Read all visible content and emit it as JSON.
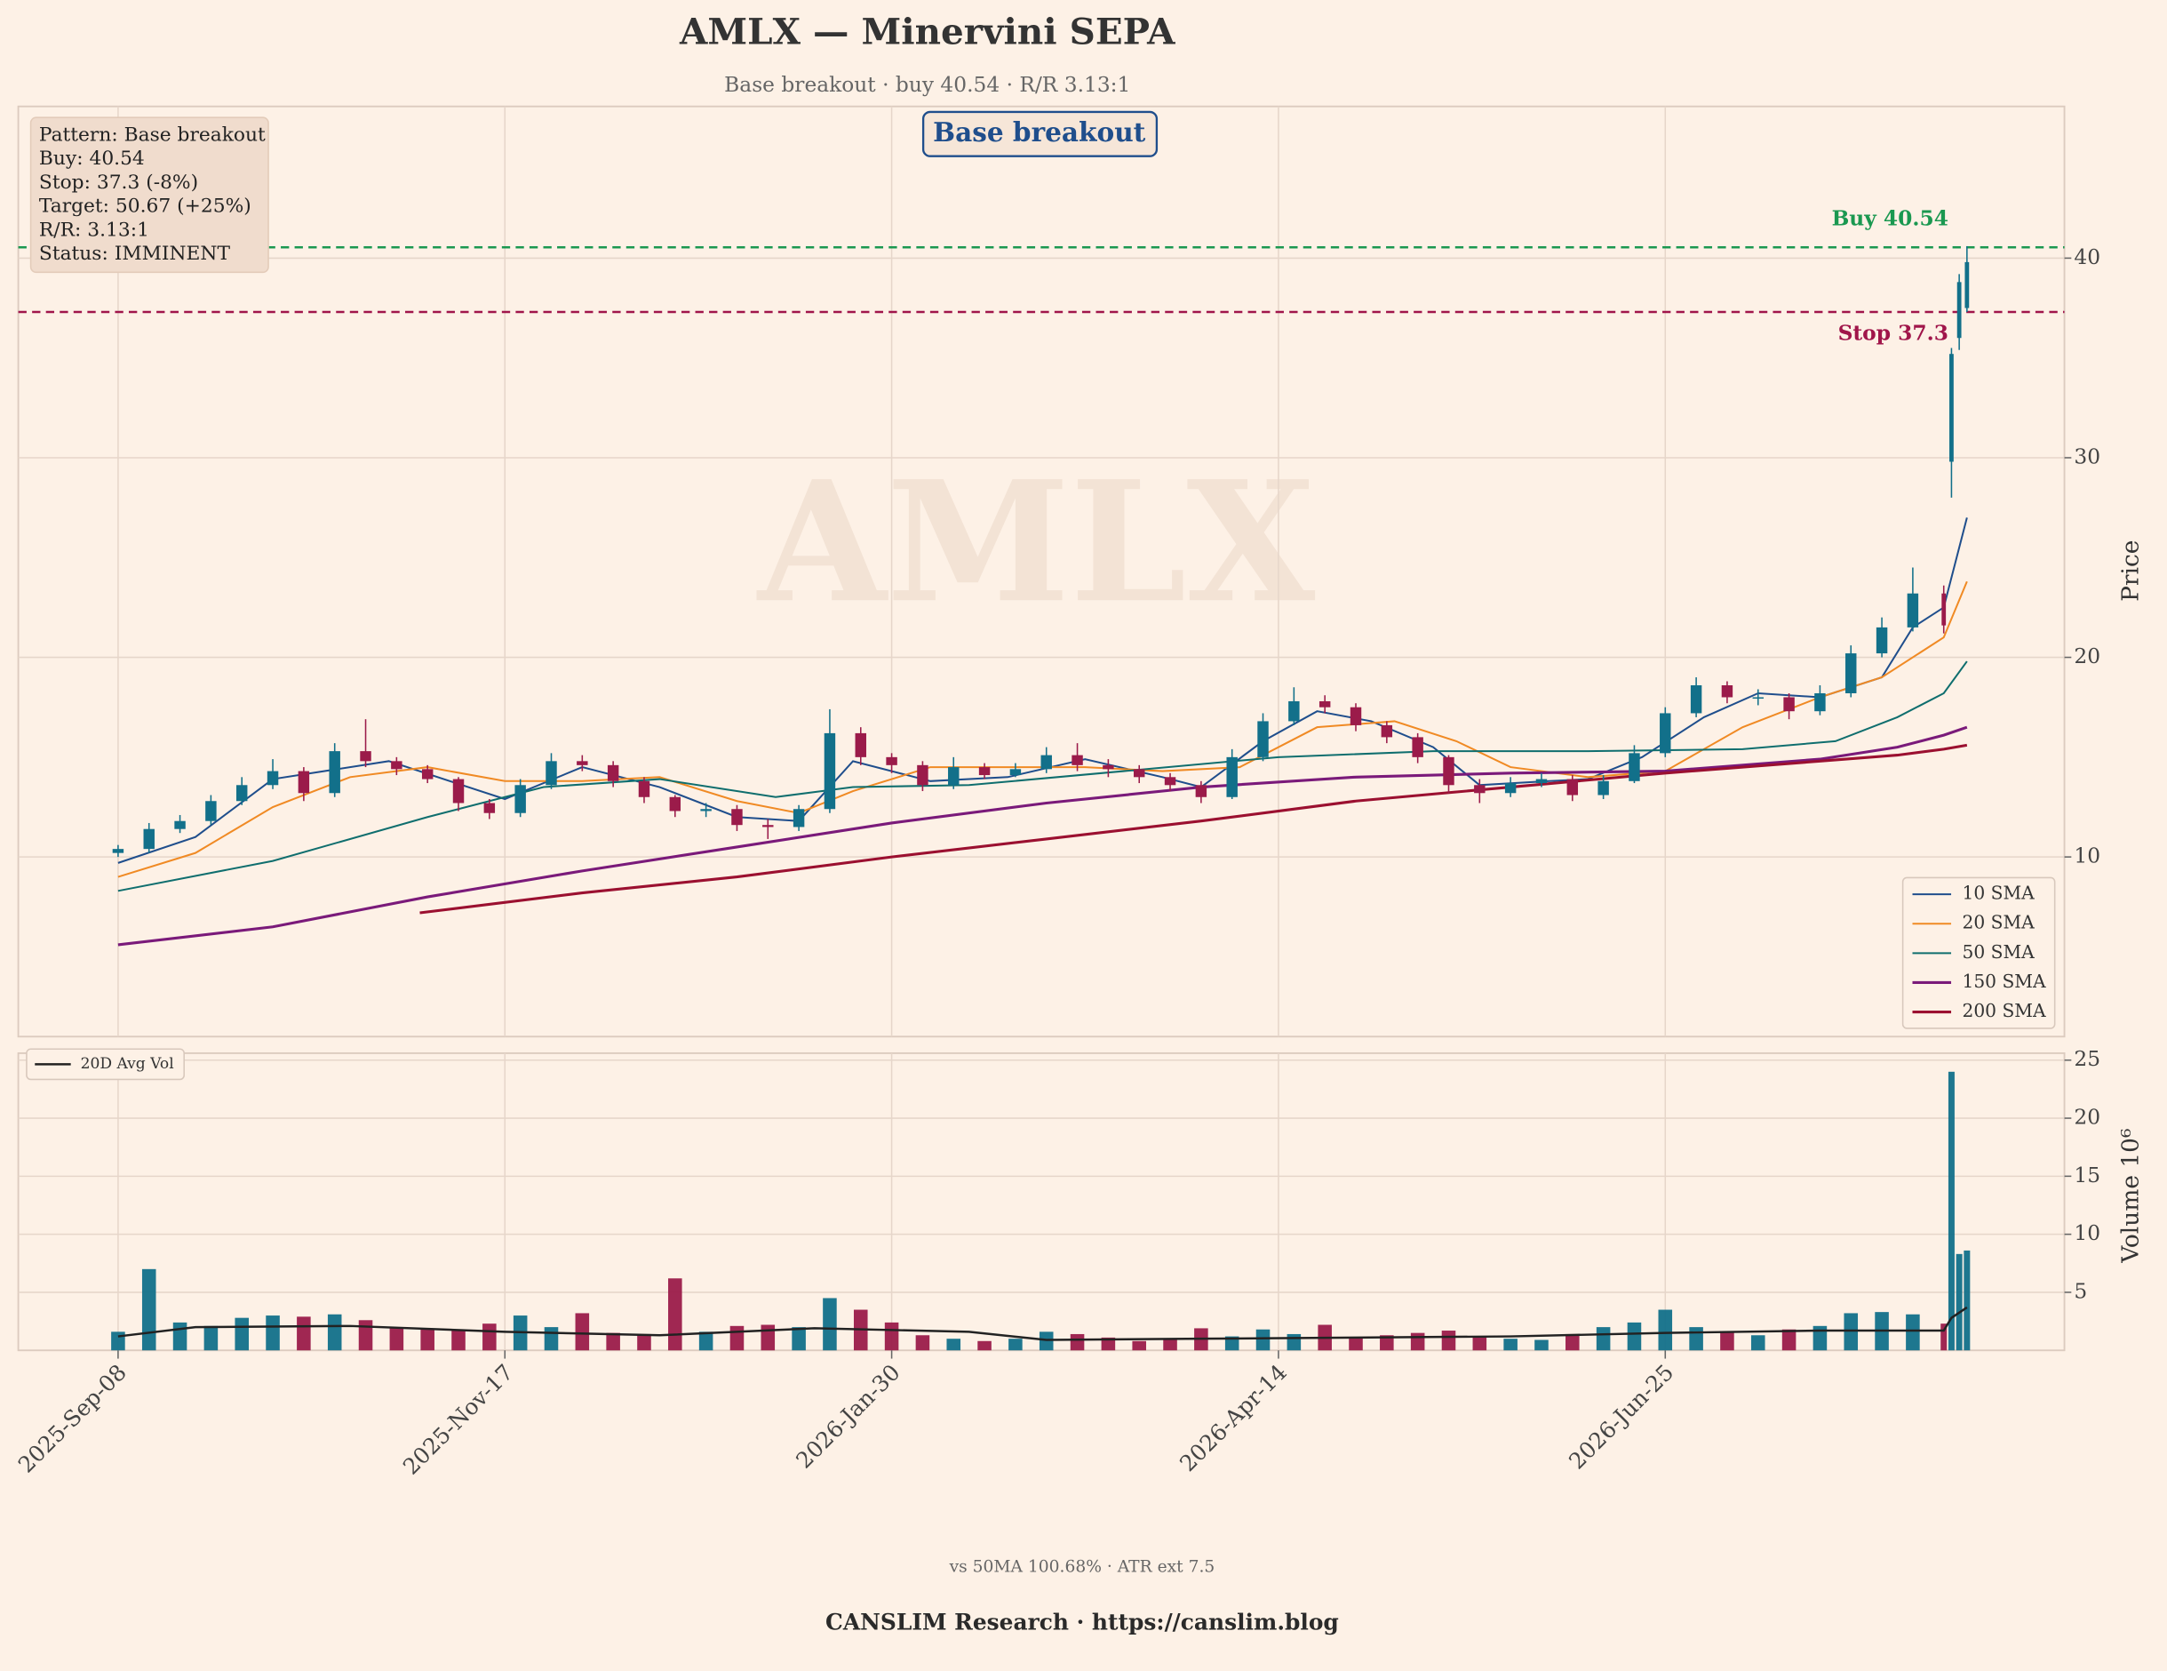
{
  "chart_data": {
    "type": "candlestick",
    "title": "AMLX — Minervini SEPA",
    "subtitle": "Base breakout · buy 40.54 · R/R 3.13:1",
    "pattern_label": "Base breakout",
    "watermark": "AMLX",
    "info_box": [
      "Pattern: Base breakout",
      "Buy: 40.54",
      "Stop: 37.3 (-8%)",
      "Target: 50.67 (+25%)",
      "R/R: 3.13:1",
      "Status: IMMINENT"
    ],
    "ylabel": "Price",
    "y2label": "Volume  10⁶",
    "footer_note": "vs 50MA 100.68% · ATR ext 7.5",
    "credit": "CANSLIM Research  ·  https://canslim.blog",
    "up_color": "#12708a",
    "down_color": "#9b1b4a",
    "xlim": [
      -12.9,
      251.6
    ],
    "xticks": [
      {
        "value": 0,
        "label": "2025-Sep-08"
      },
      {
        "value": 50,
        "label": "2025-Nov-17"
      },
      {
        "value": 100,
        "label": "2026-Jan-30"
      },
      {
        "value": 150,
        "label": "2026-Apr-14"
      },
      {
        "value": 200,
        "label": "2026-Jun-25"
      }
    ],
    "ylim": [
      1.0,
      47.6
    ],
    "yticks": [
      10,
      20,
      30,
      40
    ],
    "y2lim": [
      0,
      25.6
    ],
    "y2ticks": [
      5,
      10,
      15,
      20,
      25
    ],
    "grid": true,
    "candles": {
      "x": [
        0,
        4,
        8,
        12,
        16,
        20,
        24,
        28,
        32,
        36,
        40,
        44,
        48,
        52,
        56,
        60,
        64,
        68,
        72,
        76,
        80,
        84,
        88,
        92,
        96,
        100,
        104,
        108,
        112,
        116,
        120,
        124,
        128,
        132,
        136,
        140,
        144,
        148,
        152,
        156,
        160,
        164,
        168,
        172,
        176,
        180,
        184,
        188,
        192,
        196,
        200,
        204,
        208,
        212,
        216,
        220,
        224,
        228,
        232,
        236,
        237,
        238,
        239
      ],
      "open": [
        10.2,
        10.4,
        11.4,
        11.8,
        12.8,
        13.6,
        14.3,
        13.2,
        15.3,
        14.8,
        14.4,
        13.9,
        12.7,
        12.2,
        13.6,
        14.8,
        14.6,
        13.8,
        13.0,
        12.3,
        12.4,
        11.6,
        11.5,
        12.4,
        16.2,
        15.0,
        14.6,
        13.6,
        14.5,
        14.1,
        14.4,
        15.1,
        14.6,
        14.4,
        14.0,
        13.6,
        13.0,
        15.0,
        16.8,
        17.8,
        17.5,
        16.6,
        16.0,
        15.0,
        13.6,
        13.2,
        13.7,
        13.9,
        13.1,
        13.8,
        15.2,
        17.2,
        18.6,
        18.0,
        18.0,
        17.3,
        18.2,
        20.2,
        21.5,
        23.2,
        29.8,
        36.0,
        37.5
      ],
      "high": [
        10.6,
        11.7,
        12.1,
        13.1,
        14.0,
        14.9,
        14.5,
        15.7,
        16.9,
        15.0,
        14.6,
        14.0,
        12.9,
        13.9,
        15.2,
        15.1,
        14.8,
        14.0,
        13.1,
        12.7,
        12.6,
        11.9,
        12.6,
        17.4,
        16.5,
        15.2,
        14.8,
        15.0,
        14.7,
        14.7,
        15.5,
        15.7,
        14.9,
        14.6,
        14.2,
        13.8,
        15.4,
        17.2,
        18.5,
        18.1,
        17.7,
        16.8,
        16.2,
        15.1,
        13.9,
        14.0,
        14.2,
        14.1,
        14.1,
        15.6,
        17.5,
        19.0,
        18.8,
        18.4,
        18.2,
        18.6,
        20.6,
        22.0,
        24.5,
        23.6,
        35.5,
        39.2,
        40.6
      ],
      "low": [
        10.0,
        10.2,
        11.2,
        11.6,
        12.6,
        13.4,
        12.8,
        13.0,
        14.5,
        14.1,
        13.7,
        12.3,
        11.9,
        12.0,
        13.4,
        14.3,
        13.5,
        12.7,
        12.0,
        12.0,
        11.3,
        10.9,
        11.3,
        12.2,
        14.6,
        14.2,
        13.3,
        13.4,
        13.9,
        14.0,
        14.2,
        14.3,
        14.0,
        13.7,
        13.3,
        12.7,
        12.9,
        14.8,
        16.6,
        17.2,
        16.3,
        15.7,
        14.7,
        13.2,
        12.7,
        13.0,
        13.5,
        12.8,
        12.9,
        13.7,
        15.0,
        17.0,
        17.7,
        17.6,
        16.9,
        17.1,
        18.0,
        20.0,
        21.3,
        21.2,
        28.0,
        35.4,
        37.3
      ],
      "close": [
        10.4,
        11.4,
        11.8,
        12.8,
        13.6,
        14.3,
        13.2,
        15.3,
        14.8,
        14.4,
        13.9,
        12.7,
        12.2,
        13.6,
        14.8,
        14.6,
        13.8,
        13.0,
        12.3,
        12.4,
        11.6,
        11.5,
        12.4,
        16.2,
        15.0,
        14.6,
        13.6,
        14.5,
        14.1,
        14.4,
        15.1,
        14.6,
        14.4,
        14.0,
        13.6,
        13.0,
        15.0,
        16.8,
        17.8,
        17.5,
        16.6,
        16.0,
        15.0,
        13.6,
        13.2,
        13.7,
        13.9,
        13.1,
        13.8,
        15.2,
        17.2,
        18.6,
        18.0,
        18.0,
        17.3,
        18.2,
        20.2,
        21.5,
        23.2,
        21.6,
        35.2,
        38.8,
        39.8
      ],
      "volume": [
        1.6,
        7.0,
        2.4,
        2.1,
        2.8,
        3.0,
        2.9,
        3.1,
        2.6,
        2.0,
        1.8,
        1.7,
        2.3,
        3.0,
        2.0,
        3.2,
        1.5,
        1.4,
        6.2,
        1.6,
        2.1,
        2.2,
        2.0,
        4.5,
        3.5,
        2.4,
        1.3,
        1.0,
        0.8,
        1.0,
        1.6,
        1.4,
        1.1,
        0.8,
        1.0,
        1.9,
        1.2,
        1.8,
        1.4,
        2.2,
        1.1,
        1.3,
        1.5,
        1.7,
        1.2,
        1.0,
        0.9,
        1.4,
        2.0,
        2.4,
        3.5,
        2.0,
        1.6,
        1.3,
        1.8,
        2.1,
        3.2,
        3.3,
        3.1,
        2.3,
        24.0,
        8.3,
        8.6
      ]
    },
    "sma": [
      {
        "name": "10 SMA",
        "color": "#1f4e8c",
        "x": [
          0,
          10,
          20,
          35,
          50,
          60,
          70,
          80,
          88,
          95,
          105,
          115,
          125,
          135,
          140,
          148,
          155,
          162,
          170,
          176,
          185,
          190,
          197,
          205,
          212,
          220,
          228,
          232,
          236,
          239
        ],
        "values": [
          9.7,
          11.0,
          13.9,
          14.8,
          12.9,
          14.5,
          13.5,
          12.0,
          11.8,
          14.8,
          13.8,
          14.0,
          14.9,
          14.0,
          13.5,
          15.8,
          17.3,
          16.8,
          15.5,
          13.6,
          13.8,
          13.9,
          15.0,
          17.0,
          18.2,
          18.0,
          19.0,
          21.5,
          22.5,
          27.0
        ]
      },
      {
        "name": "20 SMA",
        "color": "#f08a24",
        "x": [
          0,
          10,
          20,
          30,
          40,
          50,
          60,
          70,
          80,
          88,
          95,
          105,
          115,
          125,
          135,
          145,
          155,
          165,
          173,
          180,
          190,
          200,
          210,
          220,
          228,
          236,
          239
        ],
        "values": [
          9.0,
          10.2,
          12.5,
          14.0,
          14.5,
          13.8,
          13.8,
          14.0,
          12.8,
          12.2,
          13.3,
          14.5,
          14.5,
          14.5,
          14.3,
          14.5,
          16.5,
          16.8,
          15.8,
          14.5,
          14.0,
          14.3,
          16.5,
          18.0,
          19.0,
          21.0,
          23.8
        ]
      },
      {
        "name": "50 SMA",
        "color": "#0f6e6e",
        "x": [
          0,
          20,
          40,
          55,
          70,
          85,
          95,
          110,
          130,
          150,
          170,
          190,
          210,
          222,
          230,
          236,
          239
        ],
        "values": [
          8.3,
          9.8,
          12.0,
          13.5,
          13.9,
          13.0,
          13.5,
          13.6,
          14.3,
          15.0,
          15.3,
          15.3,
          15.4,
          15.8,
          17.0,
          18.2,
          19.8
        ]
      },
      {
        "name": "150 SMA",
        "color": "#7a1a7a",
        "x": [
          0,
          20,
          40,
          60,
          80,
          100,
          120,
          140,
          160,
          180,
          200,
          220,
          230,
          236,
          239
        ],
        "values": [
          5.6,
          6.5,
          8.0,
          9.3,
          10.5,
          11.7,
          12.7,
          13.5,
          14.0,
          14.2,
          14.3,
          14.9,
          15.5,
          16.1,
          16.5
        ]
      },
      {
        "name": "200 SMA",
        "color": "#9b1030",
        "x": [
          39,
          60,
          80,
          100,
          120,
          140,
          160,
          180,
          200,
          220,
          230,
          236,
          239
        ],
        "values": [
          7.2,
          8.2,
          9.0,
          10.0,
          10.9,
          11.8,
          12.8,
          13.5,
          14.2,
          14.8,
          15.1,
          15.4,
          15.6
        ]
      }
    ],
    "avg_volume": {
      "name": "20D Avg Vol",
      "color": "#222222",
      "x": [
        0,
        10,
        30,
        50,
        70,
        90,
        110,
        120,
        140,
        160,
        180,
        200,
        220,
        236,
        237,
        239
      ],
      "values": [
        1.2,
        2.0,
        2.1,
        1.6,
        1.3,
        1.9,
        1.6,
        0.9,
        1.0,
        1.1,
        1.2,
        1.5,
        1.7,
        1.7,
        2.8,
        3.7
      ]
    },
    "levels": [
      {
        "value": 40.54,
        "label": "Buy 40.54",
        "color": "#1a9850"
      },
      {
        "value": 37.3,
        "label": "Stop 37.3",
        "color": "#a0154a"
      }
    ]
  }
}
